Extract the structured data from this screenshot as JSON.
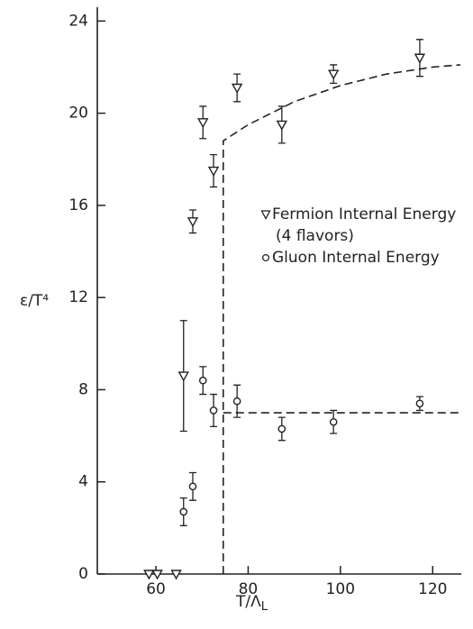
{
  "chart_data": {
    "type": "scatter",
    "xlabel": "T/Λ",
    "xlabel_sub": "L",
    "ylabel": "ε/T⁴",
    "xlim": [
      47.3,
      126.2
    ],
    "ylim": [
      0,
      24.6
    ],
    "xticks": [
      60,
      80,
      100,
      120
    ],
    "yticks": [
      0,
      4,
      8,
      12,
      16,
      20,
      24
    ],
    "series": [
      {
        "name": "Fermion Internal Energy",
        "note": "(4 flavors)",
        "marker": "triangle-down",
        "color": "#222",
        "x": [
          58.5,
          60.3,
          64.4,
          66,
          68,
          70.2,
          72.5,
          77.6,
          87.3,
          98.5,
          117.2
        ],
        "values": [
          0,
          0,
          0,
          8.6,
          15.3,
          19.6,
          17.5,
          21.1,
          19.5,
          21.7,
          22.4
        ],
        "errors": [
          0,
          0,
          0,
          2.4,
          0.5,
          0.7,
          0.7,
          0.6,
          0.8,
          0.4,
          0.8
        ]
      },
      {
        "name": "Gluon Internal Energy",
        "marker": "circle",
        "color": "#222",
        "x": [
          66,
          68,
          70.2,
          72.5,
          77.6,
          87.3,
          98.5,
          117.2
        ],
        "values": [
          2.7,
          3.8,
          8.4,
          7.1,
          7.5,
          6.3,
          6.6,
          7.4
        ],
        "errors": [
          0.6,
          0.6,
          0.6,
          0.7,
          0.7,
          0.5,
          0.5,
          0.3
        ]
      }
    ],
    "fits": [
      {
        "x": [
          74.6,
          74.6,
          80,
          90,
          100,
          110,
          120,
          126
        ],
        "values": [
          0,
          18.8,
          19.5,
          20.5,
          21.2,
          21.7,
          22.0,
          22.1
        ]
      },
      {
        "x": [
          74.6,
          126
        ],
        "values": [
          7.0,
          7.0
        ]
      }
    ]
  }
}
